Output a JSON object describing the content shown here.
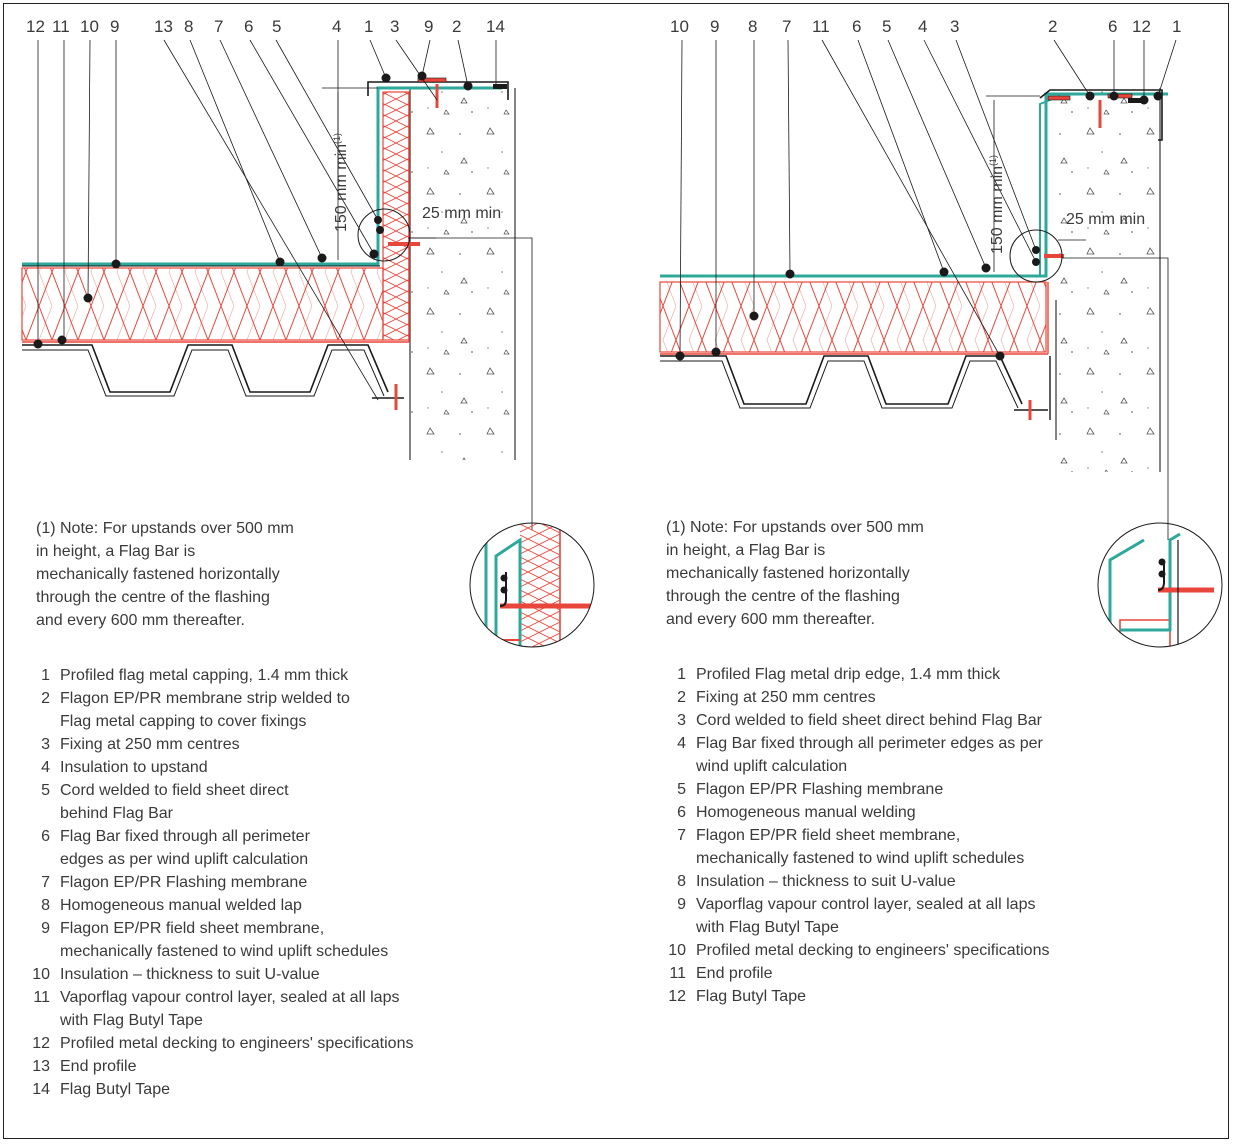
{
  "left": {
    "callouts": [
      "12",
      "11",
      "10",
      "9",
      "13",
      "8",
      "7",
      "6",
      "5",
      "4",
      "1",
      "3",
      "9",
      "2",
      "14"
    ],
    "dim_height": "150 mm min",
    "dim_height_note": "(1)",
    "dim_width": "25 mm min",
    "note_lines": [
      "(1) Note: For upstands over 500 mm",
      "in height, a Flag Bar is",
      "mechanically fastened horizontally",
      "through the centre of the flashing",
      "and every 600 mm thereafter."
    ],
    "legend": [
      {
        "n": "1",
        "text": "Profiled flag metal capping, 1.4 mm thick"
      },
      {
        "n": "2",
        "text": "Flagon EP/PR membrane strip welded to\nFlag metal capping to cover fixings"
      },
      {
        "n": "3",
        "text": "Fixing at 250 mm centres"
      },
      {
        "n": "4",
        "text": "Insulation to upstand"
      },
      {
        "n": "5",
        "text": "Cord welded to field sheet direct\nbehind Flag Bar"
      },
      {
        "n": "6",
        "text": "Flag Bar fixed through all perimeter\nedges as per wind uplift calculation"
      },
      {
        "n": "7",
        "text": "Flagon EP/PR Flashing membrane"
      },
      {
        "n": "8",
        "text": "Homogeneous manual welded lap"
      },
      {
        "n": "9",
        "text": "Flagon EP/PR field sheet membrane,\nmechanically fastened to wind uplift schedules"
      },
      {
        "n": "10",
        "text": "Insulation – thickness to suit U-value"
      },
      {
        "n": "11",
        "text": "Vaporflag vapour control layer, sealed at all laps\nwith Flag Butyl Tape"
      },
      {
        "n": "12",
        "text": "Profiled metal decking to engineers' specifications"
      },
      {
        "n": "13",
        "text": "End profile"
      },
      {
        "n": "14",
        "text": "Flag Butyl Tape"
      }
    ]
  },
  "right": {
    "callouts": [
      "10",
      "9",
      "8",
      "7",
      "11",
      "6",
      "5",
      "4",
      "3",
      "2",
      "6",
      "12",
      "1"
    ],
    "dim_height": "150 mm min",
    "dim_height_note": "(1)",
    "dim_width": "25 mm min",
    "note_lines": [
      "(1) Note: For upstands over 500 mm",
      "in height, a Flag Bar is",
      "mechanically fastened horizontally",
      "through the centre of the flashing",
      "and every 600 mm thereafter."
    ],
    "legend": [
      {
        "n": "1",
        "text": "Profiled Flag metal drip edge, 1.4 mm thick"
      },
      {
        "n": "2",
        "text": "Fixing at 250 mm centres"
      },
      {
        "n": "3",
        "text": "Cord welded to field sheet direct behind Flag Bar"
      },
      {
        "n": "4",
        "text": "Flag Bar fixed through all perimeter edges as per\nwind uplift calculation"
      },
      {
        "n": "5",
        "text": "Flagon EP/PR Flashing membrane"
      },
      {
        "n": "6",
        "text": "Homogeneous manual welding"
      },
      {
        "n": "7",
        "text": "Flagon EP/PR  field sheet membrane,\nmechanically fastened to wind uplift schedules"
      },
      {
        "n": "8",
        "text": "Insulation – thickness to suit U-value"
      },
      {
        "n": "9",
        "text": "Vaporflag vapour control layer, sealed at all laps\nwith Flag Butyl Tape"
      },
      {
        "n": "10",
        "text": "Profiled metal decking to engineers' specifications"
      },
      {
        "n": "11",
        "text": "End profile"
      },
      {
        "n": "12",
        "text": "Flag Butyl Tape"
      }
    ]
  },
  "colors": {
    "membrane": "#2ea89a",
    "insulation": "#e8463a",
    "ink": "#1a1a1a",
    "text": "#3a3a3a"
  }
}
